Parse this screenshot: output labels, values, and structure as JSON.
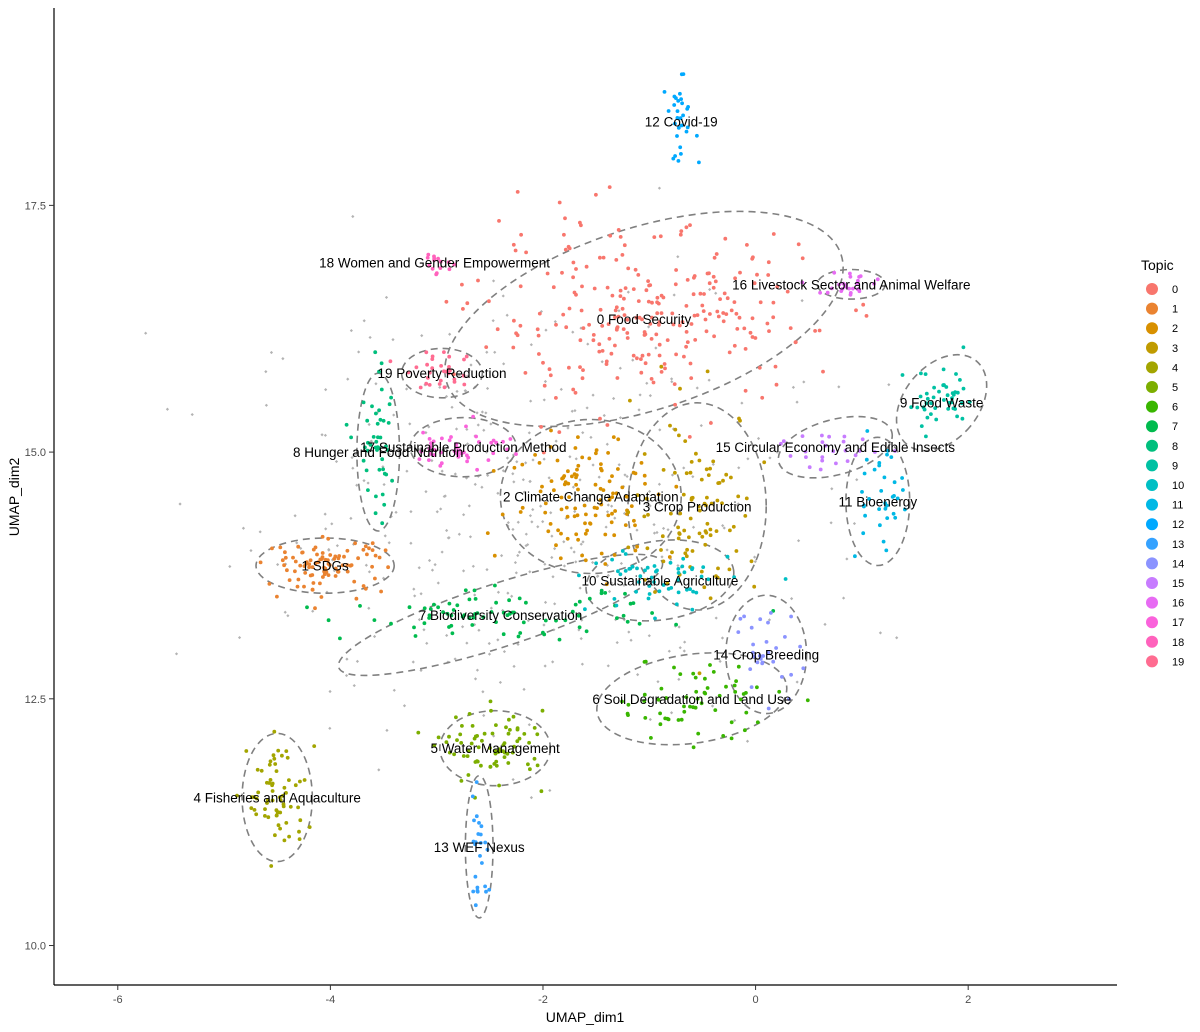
{
  "chart_data": {
    "type": "scatter",
    "xlabel": "UMAP_dim1",
    "ylabel": "UMAP_dim2",
    "xlim": [
      -6.6,
      3.4
    ],
    "ylim": [
      9.6,
      19.5
    ],
    "x_ticks": [
      -6,
      -4,
      -2,
      0,
      2
    ],
    "y_ticks": [
      10.0,
      12.5,
      15.0,
      17.5
    ],
    "y_tick_labels": [
      "10.0",
      "12.5",
      "15.0",
      "17.5"
    ],
    "grid": false,
    "legend": {
      "title": "Topic",
      "placement": "right",
      "entries": [
        "0",
        "1",
        "2",
        "3",
        "4",
        "5",
        "6",
        "7",
        "8",
        "9",
        "10",
        "11",
        "12",
        "13",
        "14",
        "15",
        "16",
        "17",
        "18",
        "19"
      ]
    },
    "outlier_color": "#b3b3b3",
    "topics": [
      {
        "id": "0",
        "label": "0 Food Security",
        "color": "#F8766D",
        "center": [
          -1.05,
          16.35
        ],
        "ellipse": {
          "rx": 1.95,
          "ry": 0.92,
          "angle": -18
        },
        "spread": [
          0.8,
          0.45
        ],
        "n": 260
      },
      {
        "id": "1",
        "label": "1 SDGs",
        "color": "#EA8331",
        "center": [
          -4.05,
          13.85
        ],
        "ellipse": {
          "rx": 0.65,
          "ry": 0.28,
          "angle": 0
        },
        "spread": [
          0.28,
          0.13
        ],
        "n": 95
      },
      {
        "id": "2",
        "label": "2 Climate Change Adaptation",
        "color": "#D89000",
        "center": [
          -1.55,
          14.55
        ],
        "ellipse": {
          "rx": 0.85,
          "ry": 0.78,
          "angle": 0
        },
        "spread": [
          0.38,
          0.34
        ],
        "n": 115
      },
      {
        "id": "3",
        "label": "3 Crop Production",
        "color": "#C09B00",
        "center": [
          -0.55,
          14.45
        ],
        "ellipse": {
          "rx": 0.65,
          "ry": 1.05,
          "angle": 0
        },
        "spread": [
          0.3,
          0.5
        ],
        "n": 95
      },
      {
        "id": "4",
        "label": "4 Fisheries and Aquaculture",
        "color": "#A3A500",
        "center": [
          -4.5,
          11.5
        ],
        "ellipse": {
          "rx": 0.33,
          "ry": 0.65,
          "angle": 0
        },
        "spread": [
          0.14,
          0.3
        ],
        "n": 65
      },
      {
        "id": "5",
        "label": "5 Water Management",
        "color": "#7CAE00",
        "center": [
          -2.45,
          12.0
        ],
        "ellipse": {
          "rx": 0.52,
          "ry": 0.38,
          "angle": 0
        },
        "spread": [
          0.24,
          0.18
        ],
        "n": 75
      },
      {
        "id": "6",
        "label": "6 Soil Degradation and Land Use",
        "color": "#39B600",
        "center": [
          -0.6,
          12.5
        ],
        "ellipse": {
          "rx": 0.9,
          "ry": 0.45,
          "angle": -8
        },
        "spread": [
          0.4,
          0.2
        ],
        "n": 60
      },
      {
        "id": "7",
        "label": "7 Biodiversity Conservation",
        "color": "#00BB4E",
        "center": [
          -2.4,
          13.35
        ],
        "ellipse": {
          "rx": 1.6,
          "ry": 0.32,
          "angle": -18
        },
        "spread": [
          0.72,
          0.12
        ],
        "n": 80
      },
      {
        "id": "8",
        "label": "8 Hunger and Food Nutrition",
        "color": "#00BF7D",
        "center": [
          -3.55,
          15.0
        ],
        "ellipse": {
          "rx": 0.2,
          "ry": 0.8,
          "angle": 0
        },
        "spread": [
          0.1,
          0.36
        ],
        "n": 45
      },
      {
        "id": "9",
        "label": "9 Food Waste",
        "color": "#00C1A3",
        "center": [
          1.75,
          15.5
        ],
        "ellipse": {
          "rx": 0.35,
          "ry": 0.55,
          "angle": 40
        },
        "spread": [
          0.17,
          0.17
        ],
        "n": 45
      },
      {
        "id": "10",
        "label": "10 Sustainable Agriculture",
        "color": "#00BFC4",
        "center": [
          -0.9,
          13.7
        ],
        "ellipse": {
          "rx": 0.7,
          "ry": 0.4,
          "angle": -8
        },
        "spread": [
          0.33,
          0.17
        ],
        "n": 55
      },
      {
        "id": "11",
        "label": "11 Bioenergy",
        "color": "#00B8E5",
        "center": [
          1.15,
          14.5
        ],
        "ellipse": {
          "rx": 0.3,
          "ry": 0.65,
          "angle": 0
        },
        "spread": [
          0.13,
          0.3
        ],
        "n": 35
      },
      {
        "id": "12",
        "label": "12 Covid-19",
        "color": "#00A9FF",
        "center": [
          -0.7,
          18.35
        ],
        "ellipse": null,
        "spread": [
          0.07,
          0.2
        ],
        "n": 30
      },
      {
        "id": "13",
        "label": "13 WEF Nexus",
        "color": "#35A2FF",
        "center": [
          -2.6,
          11.0
        ],
        "ellipse": {
          "rx": 0.13,
          "ry": 0.72,
          "angle": 0
        },
        "spread": [
          0.05,
          0.3
        ],
        "n": 25
      },
      {
        "id": "14",
        "label": "14 Crop Breeding",
        "color": "#8B93FF",
        "center": [
          0.1,
          12.95
        ],
        "ellipse": {
          "rx": 0.38,
          "ry": 0.6,
          "angle": 0
        },
        "spread": [
          0.16,
          0.25
        ],
        "n": 30
      },
      {
        "id": "15",
        "label": "15 Circular Economy and Edible Insects",
        "color": "#C77CFF",
        "center": [
          0.75,
          15.05
        ],
        "ellipse": {
          "rx": 0.55,
          "ry": 0.28,
          "angle": -15
        },
        "spread": [
          0.25,
          0.12
        ],
        "n": 25
      },
      {
        "id": "16",
        "label": "16 Livestock Sector and Animal Welfare",
        "color": "#E76BF3",
        "center": [
          0.9,
          16.7
        ],
        "ellipse": {
          "rx": 0.32,
          "ry": 0.15,
          "angle": 0
        },
        "spread": [
          0.15,
          0.07
        ],
        "n": 25
      },
      {
        "id": "17",
        "label": "17 Sustainable Production Method",
        "color": "#FA62DB",
        "center": [
          -2.75,
          15.05
        ],
        "ellipse": {
          "rx": 0.5,
          "ry": 0.3,
          "angle": 0
        },
        "spread": [
          0.23,
          0.12
        ],
        "n": 45
      },
      {
        "id": "18",
        "label": "18 Women and Gender Empowerment",
        "color": "#FF62BC",
        "center": [
          -3.02,
          16.92
        ],
        "ellipse": null,
        "spread": [
          0.1,
          0.06
        ],
        "n": 15
      },
      {
        "id": "19",
        "label": "19 Poverty Reduction",
        "color": "#FF6C91",
        "center": [
          -2.95,
          15.8
        ],
        "ellipse": {
          "rx": 0.38,
          "ry": 0.25,
          "angle": 0
        },
        "spread": [
          0.16,
          0.1
        ],
        "n": 30
      }
    ]
  }
}
